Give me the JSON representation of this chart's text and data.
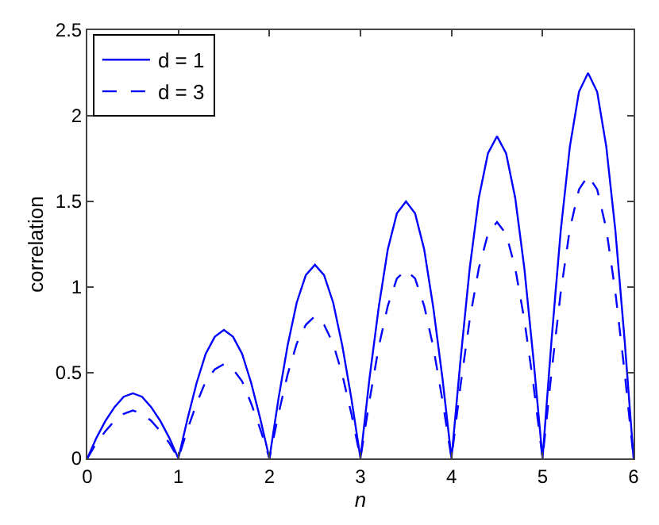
{
  "chart_data": {
    "type": "line",
    "xlabel": "n",
    "ylabel": "correlation",
    "xlim": [
      0,
      6
    ],
    "ylim": [
      0,
      2.5
    ],
    "xticks": [
      0,
      1,
      2,
      3,
      4,
      5,
      6
    ],
    "yticks": [
      0,
      0.5,
      1,
      1.5,
      2,
      2.5
    ],
    "legend": "top left",
    "marker": "none",
    "x": [
      0,
      0.1,
      0.2,
      0.3,
      0.4,
      0.5,
      0.6,
      0.7,
      0.8,
      0.9,
      1,
      1.1,
      1.2,
      1.3,
      1.4,
      1.5,
      1.6,
      1.7,
      1.8,
      1.9,
      2,
      2.1,
      2.2,
      2.3,
      2.4,
      2.5,
      2.6,
      2.7,
      2.8,
      2.9,
      3,
      3.1,
      3.2,
      3.3,
      3.4,
      3.5,
      3.6,
      3.7,
      3.8,
      3.9,
      4,
      4.1,
      4.2,
      4.3,
      4.4,
      4.5,
      4.6,
      4.7,
      4.8,
      4.9,
      5,
      5.1,
      5.2,
      5.3,
      5.4,
      5.5,
      5.6,
      5.7,
      5.8,
      5.9,
      6
    ],
    "series": [
      {
        "name": "d = 1",
        "color": "#0000ff",
        "line_style": "solid",
        "values": [
          0,
          0.12,
          0.22,
          0.3,
          0.36,
          0.38,
          0.36,
          0.3,
          0.22,
          0.12,
          0,
          0.23,
          0.44,
          0.61,
          0.71,
          0.75,
          0.71,
          0.61,
          0.44,
          0.23,
          0,
          0.35,
          0.66,
          0.91,
          1.07,
          1.13,
          1.07,
          0.91,
          0.66,
          0.35,
          0,
          0.47,
          0.88,
          1.22,
          1.43,
          1.5,
          1.43,
          1.22,
          0.88,
          0.47,
          0,
          0.58,
          1.11,
          1.52,
          1.78,
          1.88,
          1.78,
          1.52,
          1.11,
          0.58,
          0,
          0.7,
          1.33,
          1.82,
          2.14,
          2.25,
          2.14,
          1.82,
          1.33,
          0.7,
          0
        ]
      },
      {
        "name": "d = 3",
        "color": "#0000ff",
        "line_style": "dashed",
        "values": [
          0,
          0.09,
          0.16,
          0.22,
          0.26,
          0.28,
          0.26,
          0.22,
          0.16,
          0.09,
          0,
          0.17,
          0.32,
          0.45,
          0.52,
          0.55,
          0.52,
          0.45,
          0.32,
          0.17,
          0,
          0.26,
          0.49,
          0.67,
          0.78,
          0.83,
          0.78,
          0.67,
          0.49,
          0.26,
          0,
          0.34,
          0.65,
          0.89,
          1.05,
          1.1,
          1.05,
          0.89,
          0.65,
          0.34,
          0,
          0.43,
          0.81,
          1.11,
          1.31,
          1.38,
          1.31,
          1.11,
          0.81,
          0.43,
          0,
          0.51,
          0.97,
          1.34,
          1.57,
          1.65,
          1.57,
          1.34,
          0.97,
          0.51,
          0
        ]
      }
    ]
  }
}
